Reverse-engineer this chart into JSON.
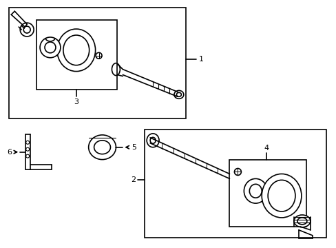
{
  "bg_color": "#ffffff",
  "line_color": "#000000",
  "line_width": 1.2,
  "fig_width": 4.89,
  "fig_height": 3.6,
  "dpi": 100,
  "labels": {
    "1": "1",
    "2": "2",
    "3": "3",
    "4": "4",
    "5": "5",
    "6": "6"
  }
}
